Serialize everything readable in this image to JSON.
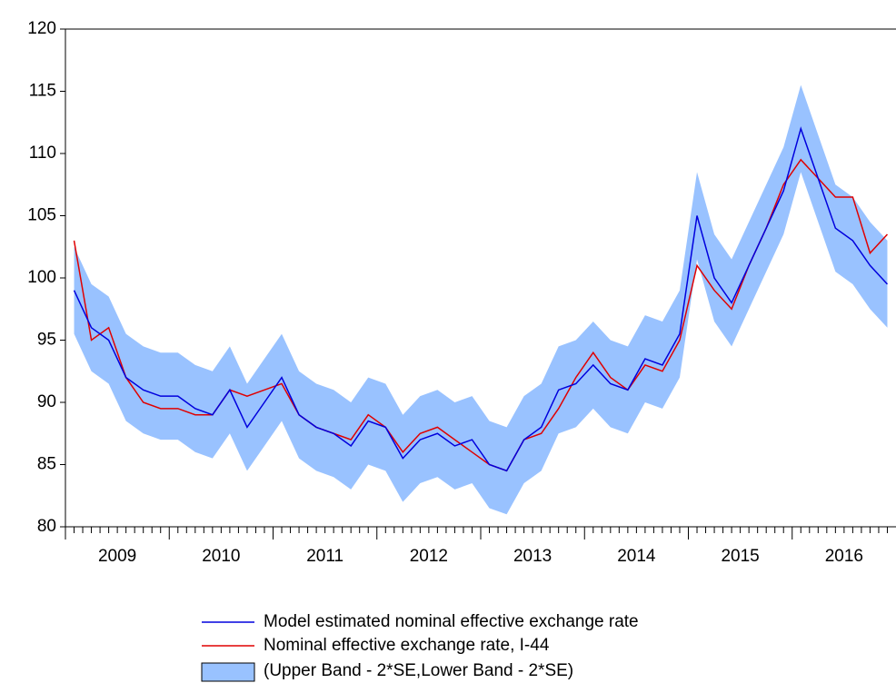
{
  "chart_data": {
    "type": "line",
    "categories": [
      null,
      null,
      null,
      "2009",
      null,
      null,
      null,
      null,
      null,
      "2010",
      null,
      null,
      null,
      null,
      null,
      "2011",
      null,
      null,
      null,
      null,
      null,
      "2012",
      null,
      null,
      null,
      null,
      null,
      "2013",
      null,
      null,
      null,
      null,
      null,
      "2014",
      null,
      null,
      null,
      null,
      null,
      "2015",
      null,
      null,
      null,
      null,
      null,
      "2016",
      null,
      null
    ],
    "ylim": [
      80,
      120
    ],
    "yticks": [
      80,
      85,
      90,
      95,
      100,
      105,
      110,
      115,
      120
    ],
    "band": {
      "name": "(Upper Band - 2*SE,Lower Band - 2*SE)",
      "color": "#99c2ff",
      "upper": [
        102.5,
        99.5,
        98.5,
        95.5,
        94.5,
        94,
        94,
        93,
        92.5,
        94.5,
        91.5,
        93.5,
        95.5,
        92.5,
        91.5,
        91,
        90,
        92,
        91.5,
        89,
        90.5,
        91,
        90,
        90.5,
        88.5,
        88,
        90.5,
        91.5,
        94.5,
        95,
        96.5,
        95,
        94.5,
        97,
        96.5,
        99,
        108.5,
        103.5,
        101.5,
        104.5,
        107.5,
        110.5,
        115.5,
        111.5,
        107.5,
        106.5,
        104.5,
        103
      ],
      "lower": [
        95.5,
        92.5,
        91.5,
        88.5,
        87.5,
        87,
        87,
        86,
        85.5,
        87.5,
        84.5,
        86.5,
        88.5,
        85.5,
        84.5,
        84,
        83,
        85,
        84.5,
        82,
        83.5,
        84,
        83,
        83.5,
        81.5,
        81,
        83.5,
        84.5,
        87.5,
        88,
        89.5,
        88,
        87.5,
        90,
        89.5,
        92,
        101.5,
        96.5,
        94.5,
        97.5,
        100.5,
        103.5,
        108.5,
        104.5,
        100.5,
        99.5,
        97.5,
        96
      ]
    },
    "series": [
      {
        "name": "Model estimated nominal effective exchange rate",
        "color": "#0000dd",
        "values": [
          99,
          96,
          95,
          92,
          91,
          90.5,
          90.5,
          89.5,
          89,
          91,
          88,
          90,
          92,
          89,
          88,
          87.5,
          86.5,
          88.5,
          88,
          85.5,
          87,
          87.5,
          86.5,
          87,
          85,
          84.5,
          87,
          88,
          91,
          91.5,
          93,
          91.5,
          91,
          93.5,
          93,
          95.5,
          105,
          100,
          98,
          101,
          104,
          107,
          112,
          108,
          104,
          103,
          101,
          99.5
        ]
      },
      {
        "name": "Nominal effective exchange rate, I-44",
        "color": "#e00000",
        "values": [
          103,
          95,
          96,
          92,
          90,
          89.5,
          89.5,
          89,
          89,
          91,
          90.5,
          91,
          91.5,
          89,
          88,
          87.5,
          87,
          89,
          88,
          86,
          87.5,
          88,
          87,
          86,
          85,
          84.5,
          87,
          87.5,
          89.5,
          92,
          94,
          92,
          91,
          93,
          92.5,
          95,
          101,
          99,
          97.5,
          101,
          104,
          107.5,
          109.5,
          108,
          106.5,
          106.5,
          102,
          103.5
        ]
      }
    ]
  }
}
